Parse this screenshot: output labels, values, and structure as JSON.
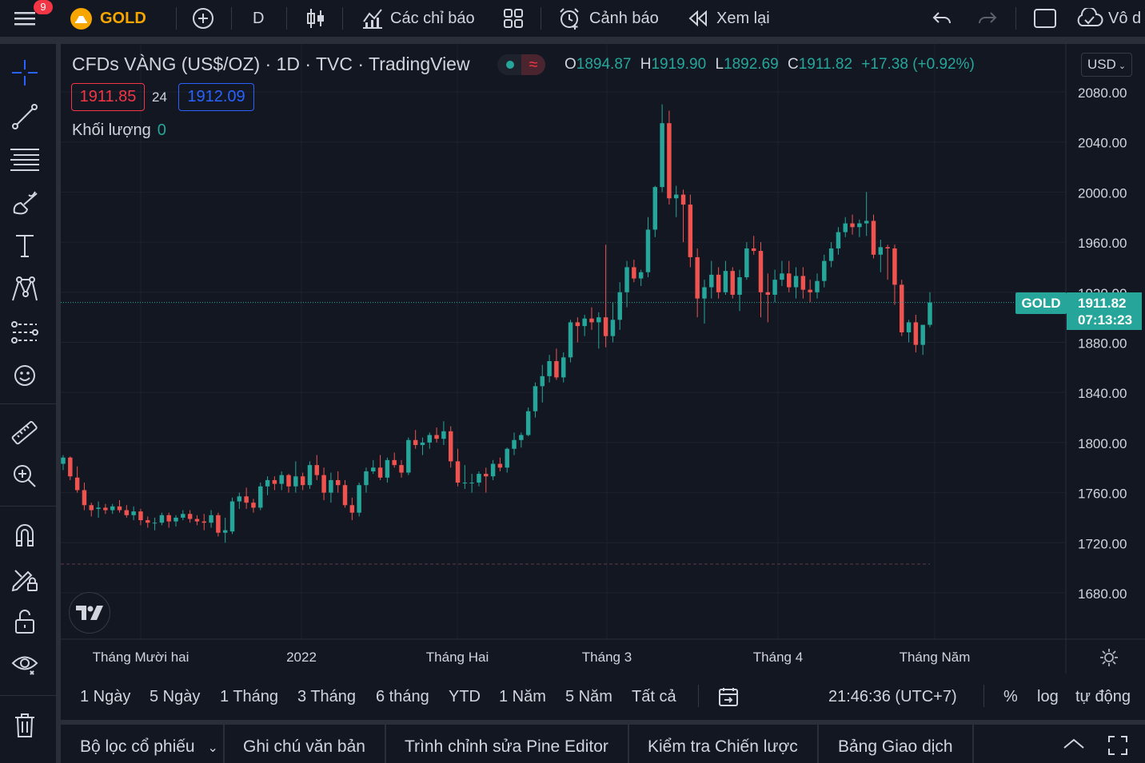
{
  "header": {
    "notification_count": "9",
    "symbol": "GOLD",
    "interval": "D",
    "indicators_label": "Các chỉ báo",
    "alerts_label": "Cảnh báo",
    "replay_label": "Xem lại",
    "right_cut_label": "Vô d"
  },
  "legend": {
    "title_parts": [
      "CFDs VÀNG (US$/OZ)",
      "1D",
      "TVC",
      "TradingView"
    ],
    "title": "CFDs VÀNG (US$/OZ) · 1D · TVC · TradingView",
    "wave_symbol": "≈",
    "o_label": "O",
    "o": "1894.87",
    "h_label": "H",
    "h": "1919.90",
    "l_label": "L",
    "l": "1892.69",
    "c_label": "C",
    "c": "1911.82",
    "change": "+17.38 (+0.92%)",
    "bid": "1911.85",
    "spread": "24",
    "ask": "1912.09",
    "volume_label": "Khối lượng",
    "volume_value": "0"
  },
  "price_axis": {
    "currency": "USD",
    "ticks": [
      "2080.00",
      "2040.00",
      "2000.00",
      "1960.00",
      "1920.00",
      "1880.00",
      "1840.00",
      "1800.00",
      "1760.00",
      "1720.00",
      "1680.00"
    ],
    "symbol_tag": "GOLD",
    "last_price": "1911.82",
    "countdown": "07:13:23"
  },
  "time_axis": {
    "labels": [
      "Tháng Mười hai",
      "2022",
      "Tháng Hai",
      "Tháng 3",
      "Tháng 4",
      "Tháng Năm"
    ]
  },
  "range_bar": {
    "ranges": [
      "1 Ngày",
      "5 Ngày",
      "1 Tháng",
      "3 Tháng",
      "6 tháng",
      "YTD",
      "1 Năm",
      "5 Năm",
      "Tất cả"
    ],
    "clock": "21:46:36 (UTC+7)",
    "percent": "%",
    "log": "log",
    "auto": "tự động"
  },
  "bottom_tabs": {
    "screener": "Bộ lọc cổ phiếu",
    "notes": "Ghi chú văn bản",
    "pine": "Trình chỉnh sửa Pine Editor",
    "strategy": "Kiểm tra Chiến lược",
    "trading": "Bảng Giao dịch"
  },
  "left_tools": [
    "crosshair-icon",
    "trend-line-icon",
    "fib-icon",
    "brush-icon",
    "text-icon",
    "pattern-icon",
    "prediction-icon",
    "emoji-icon",
    "ruler-icon",
    "zoom-in-icon",
    "magnet-icon",
    "lock-drawing-icon",
    "lock-icon",
    "eye-icon",
    "trash-icon"
  ],
  "colors": {
    "up": "#26a69a",
    "down": "#ef5350",
    "background": "#131722",
    "grid": "#1e222d"
  },
  "chart_data": {
    "type": "candlestick",
    "title": "CFDs VÀNG (US$/OZ) · 1D · TVC · TradingView",
    "y_range": [
      1660,
      2100
    ],
    "x_labels": [
      "Tháng Mười hai",
      "2022",
      "Tháng Hai",
      "Tháng 3",
      "Tháng 4",
      "Tháng Năm"
    ],
    "last": 1911.82,
    "candles": [
      [
        1783,
        1790,
        1778,
        1788
      ],
      [
        1788,
        1789,
        1770,
        1773
      ],
      [
        1772,
        1781,
        1760,
        1762
      ],
      [
        1762,
        1768,
        1746,
        1750
      ],
      [
        1750,
        1752,
        1741,
        1746
      ],
      [
        1747,
        1753,
        1740,
        1748
      ],
      [
        1748,
        1751,
        1743,
        1746
      ],
      [
        1746,
        1751,
        1743,
        1749
      ],
      [
        1749,
        1754,
        1744,
        1746
      ],
      [
        1746,
        1750,
        1740,
        1742
      ],
      [
        1742,
        1749,
        1738,
        1745
      ],
      [
        1745,
        1747,
        1734,
        1738
      ],
      [
        1738,
        1741,
        1732,
        1736
      ],
      [
        1736,
        1740,
        1730,
        1736
      ],
      [
        1736,
        1744,
        1734,
        1742
      ],
      [
        1742,
        1744,
        1732,
        1737
      ],
      [
        1737,
        1742,
        1733,
        1740
      ],
      [
        1740,
        1746,
        1738,
        1743
      ],
      [
        1743,
        1746,
        1736,
        1739
      ],
      [
        1739,
        1742,
        1734,
        1737
      ],
      [
        1737,
        1743,
        1730,
        1736
      ],
      [
        1736,
        1746,
        1732,
        1742
      ],
      [
        1742,
        1744,
        1725,
        1728
      ],
      [
        1728,
        1740,
        1720,
        1730
      ],
      [
        1729,
        1756,
        1727,
        1753
      ],
      [
        1753,
        1760,
        1747,
        1757
      ],
      [
        1757,
        1764,
        1747,
        1752
      ],
      [
        1752,
        1755,
        1744,
        1748
      ],
      [
        1748,
        1768,
        1746,
        1765
      ],
      [
        1765,
        1773,
        1758,
        1770
      ],
      [
        1770,
        1773,
        1762,
        1767
      ],
      [
        1767,
        1777,
        1762,
        1774
      ],
      [
        1774,
        1775,
        1760,
        1765
      ],
      [
        1765,
        1785,
        1760,
        1773
      ],
      [
        1773,
        1776,
        1762,
        1766
      ],
      [
        1766,
        1785,
        1763,
        1782
      ],
      [
        1782,
        1790,
        1770,
        1774
      ],
      [
        1774,
        1780,
        1754,
        1760
      ],
      [
        1760,
        1776,
        1752,
        1770
      ],
      [
        1770,
        1777,
        1760,
        1766
      ],
      [
        1766,
        1770,
        1748,
        1750
      ],
      [
        1750,
        1756,
        1738,
        1744
      ],
      [
        1744,
        1768,
        1741,
        1766
      ],
      [
        1766,
        1780,
        1760,
        1777
      ],
      [
        1777,
        1786,
        1775,
        1780
      ],
      [
        1780,
        1790,
        1770,
        1772
      ],
      [
        1772,
        1788,
        1768,
        1786
      ],
      [
        1786,
        1792,
        1780,
        1782
      ],
      [
        1782,
        1786,
        1772,
        1776
      ],
      [
        1776,
        1804,
        1774,
        1802
      ],
      [
        1802,
        1810,
        1795,
        1798
      ],
      [
        1798,
        1804,
        1790,
        1800
      ],
      [
        1800,
        1808,
        1795,
        1806
      ],
      [
        1806,
        1812,
        1800,
        1803
      ],
      [
        1803,
        1817,
        1798,
        1809
      ],
      [
        1809,
        1813,
        1780,
        1785
      ],
      [
        1785,
        1795,
        1765,
        1768
      ],
      [
        1768,
        1782,
        1763,
        1768
      ],
      [
        1768,
        1775,
        1760,
        1768
      ],
      [
        1768,
        1777,
        1765,
        1775
      ],
      [
        1775,
        1780,
        1760,
        1773
      ],
      [
        1773,
        1786,
        1770,
        1783
      ],
      [
        1783,
        1788,
        1777,
        1780
      ],
      [
        1780,
        1796,
        1776,
        1795
      ],
      [
        1795,
        1808,
        1790,
        1802
      ],
      [
        1802,
        1808,
        1796,
        1806
      ],
      [
        1806,
        1828,
        1805,
        1825
      ],
      [
        1825,
        1848,
        1820,
        1845
      ],
      [
        1845,
        1862,
        1832,
        1853
      ],
      [
        1853,
        1870,
        1848,
        1865
      ],
      [
        1865,
        1875,
        1850,
        1852
      ],
      [
        1852,
        1872,
        1848,
        1868
      ],
      [
        1868,
        1898,
        1864,
        1896
      ],
      [
        1896,
        1900,
        1880,
        1893
      ],
      [
        1893,
        1902,
        1885,
        1899
      ],
      [
        1899,
        1908,
        1890,
        1896
      ],
      [
        1896,
        1904,
        1875,
        1900
      ],
      [
        1900,
        1958,
        1876,
        1885
      ],
      [
        1885,
        1912,
        1880,
        1898
      ],
      [
        1898,
        1928,
        1890,
        1920
      ],
      [
        1920,
        1945,
        1908,
        1940
      ],
      [
        1940,
        1946,
        1928,
        1931
      ],
      [
        1931,
        1938,
        1925,
        1936
      ],
      [
        1936,
        1980,
        1932,
        1970
      ],
      [
        1970,
        2005,
        1964,
        2004
      ],
      [
        2004,
        2070,
        2000,
        2055
      ],
      [
        2055,
        2065,
        1990,
        1995
      ],
      [
        1995,
        2005,
        1980,
        1998
      ],
      [
        1998,
        2002,
        1960,
        1990
      ],
      [
        1990,
        1998,
        1940,
        1948
      ],
      [
        1948,
        1955,
        1900,
        1915
      ],
      [
        1915,
        1930,
        1895,
        1924
      ],
      [
        1924,
        1945,
        1915,
        1934
      ],
      [
        1934,
        1940,
        1915,
        1920
      ],
      [
        1920,
        1945,
        1918,
        1937
      ],
      [
        1937,
        1940,
        1915,
        1918
      ],
      [
        1918,
        1938,
        1905,
        1932
      ],
      [
        1932,
        1960,
        1930,
        1955
      ],
      [
        1955,
        1965,
        1950,
        1953
      ],
      [
        1953,
        1960,
        1900,
        1920
      ],
      [
        1920,
        1935,
        1896,
        1918
      ],
      [
        1918,
        1938,
        1912,
        1930
      ],
      [
        1930,
        1945,
        1925,
        1935
      ],
      [
        1935,
        1945,
        1920,
        1924
      ],
      [
        1924,
        1940,
        1915,
        1933
      ],
      [
        1933,
        1940,
        1915,
        1922
      ],
      [
        1922,
        1930,
        1912,
        1920
      ],
      [
        1920,
        1935,
        1915,
        1929
      ],
      [
        1929,
        1950,
        1924,
        1945
      ],
      [
        1945,
        1960,
        1940,
        1955
      ],
      [
        1955,
        1972,
        1950,
        1968
      ],
      [
        1968,
        1980,
        1964,
        1975
      ],
      [
        1975,
        1982,
        1966,
        1972
      ],
      [
        1972,
        1978,
        1964,
        1975
      ],
      [
        1975,
        2000,
        1965,
        1977
      ],
      [
        1977,
        1982,
        1947,
        1950
      ],
      [
        1950,
        1962,
        1936,
        1956
      ],
      [
        1956,
        1958,
        1930,
        1955
      ],
      [
        1955,
        1958,
        1910,
        1926
      ],
      [
        1926,
        1930,
        1885,
        1888
      ],
      [
        1888,
        1898,
        1880,
        1896
      ],
      [
        1896,
        1902,
        1872,
        1878
      ],
      [
        1878,
        1890,
        1870,
        1894
      ],
      [
        1894,
        1920,
        1892,
        1911.82
      ]
    ]
  }
}
